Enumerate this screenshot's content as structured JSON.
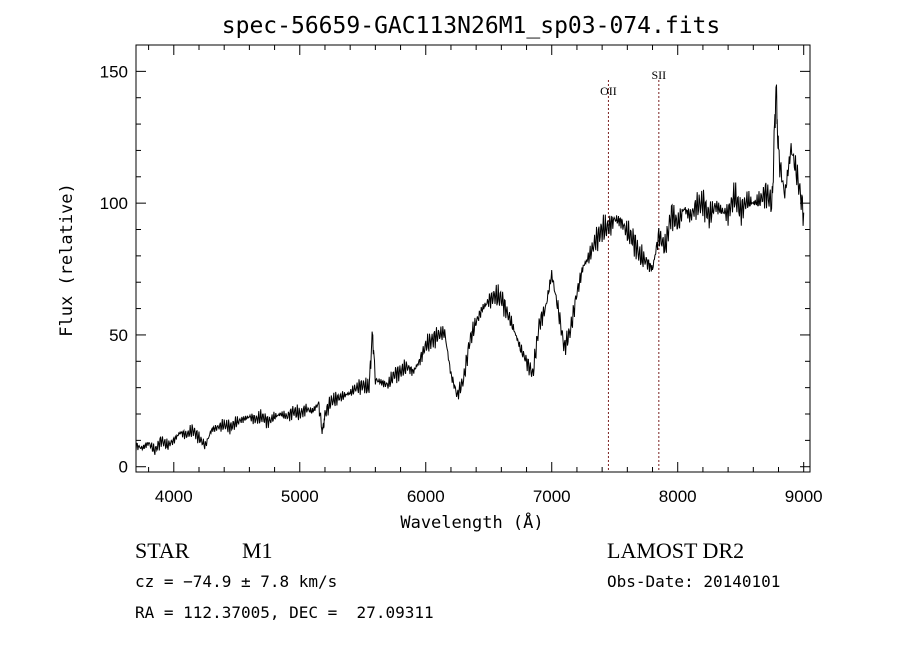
{
  "chart_data": {
    "type": "line",
    "title": "spec-56659-GAC113N26M1_sp03-074.fits",
    "xlabel": "Wavelength (Å)",
    "ylabel": "Flux (relative)",
    "xlim": [
      3700,
      9050
    ],
    "ylim": [
      -2,
      160
    ],
    "xticks": [
      4000,
      5000,
      6000,
      7000,
      8000,
      9000
    ],
    "yticks": [
      0,
      50,
      100,
      150
    ],
    "grid": false,
    "series": [
      {
        "x": [
          3700,
          3750,
          3800,
          3850,
          3900,
          3950,
          4000,
          4050,
          4100,
          4150,
          4200,
          4250,
          4300,
          4350,
          4400,
          4450,
          4500,
          4550,
          4600,
          4650,
          4700,
          4750,
          4800,
          4850,
          4900,
          4950,
          5000,
          5050,
          5100,
          5150,
          5180,
          5200,
          5250,
          5300,
          5350,
          5400,
          5450,
          5500,
          5550,
          5577,
          5600,
          5650,
          5700,
          5750,
          5800,
          5850,
          5900,
          5950,
          6000,
          6050,
          6100,
          6150,
          6200,
          6250,
          6300,
          6350,
          6400,
          6450,
          6500,
          6550,
          6600,
          6650,
          6700,
          6750,
          6800,
          6850,
          6900,
          6950,
          7000,
          7050,
          7100,
          7150,
          7200,
          7250,
          7300,
          7350,
          7400,
          7450,
          7500,
          7550,
          7600,
          7650,
          7700,
          7750,
          7800,
          7850,
          7900,
          7950,
          8000,
          8050,
          8100,
          8150,
          8200,
          8250,
          8300,
          8350,
          8400,
          8450,
          8500,
          8550,
          8600,
          8650,
          8700,
          8750,
          8780,
          8800,
          8850,
          8900,
          8950,
          9000
        ],
        "values": [
          8,
          7,
          9,
          6,
          10,
          8,
          10,
          13,
          12,
          14,
          11,
          8,
          14,
          15,
          16,
          15,
          17,
          18,
          19,
          18,
          19,
          17,
          19,
          20,
          19,
          21,
          20,
          22,
          21,
          24,
          13,
          20,
          25,
          26,
          27,
          28,
          30,
          31,
          30,
          51,
          33,
          32,
          31,
          35,
          36,
          38,
          36,
          40,
          46,
          48,
          50,
          51,
          35,
          27,
          33,
          48,
          55,
          60,
          63,
          65,
          64,
          58,
          52,
          45,
          40,
          35,
          54,
          60,
          73,
          60,
          45,
          52,
          66,
          76,
          80,
          86,
          90,
          91,
          94,
          93,
          89,
          86,
          80,
          78,
          75,
          88,
          83,
          96,
          92,
          98,
          95,
          99,
          100,
          95,
          99,
          97,
          96,
          103,
          97,
          101,
          100,
          101,
          104,
          100,
          145,
          118,
          103,
          121,
          110,
          96
        ]
      }
    ],
    "markers": [
      {
        "label": "OII",
        "x": 7450
      },
      {
        "label": "SII",
        "x": 7850
      }
    ]
  },
  "info": {
    "obj_class": "STAR",
    "subclass": "M1",
    "cz": "cz = −74.9 ± 7.8 km/s",
    "coords": "RA = 112.37005, DEC =  27.09311",
    "survey": "LAMOST DR2",
    "obs_date": "Obs-Date: 20140101"
  }
}
